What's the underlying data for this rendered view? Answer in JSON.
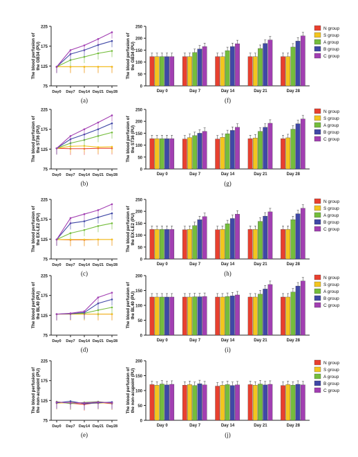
{
  "legend": {
    "labels": [
      "N group",
      "S group",
      "A group",
      "B group",
      "C group"
    ],
    "colors": [
      "#e8402f",
      "#f3c51f",
      "#74bd3c",
      "#3f48a6",
      "#a23fb2"
    ]
  },
  "line_x_labels": [
    "Day0",
    "Day7",
    "Day14",
    "Day21",
    "Day28"
  ],
  "bar_x_labels": [
    "Day 0",
    "Day 7",
    "Day 14",
    "Day 21",
    "Day 28"
  ],
  "chart_data": [
    {
      "id": "a",
      "type": "line",
      "panel_label": "(a)",
      "ylabel": "The blood perfusion of the GB34 (PU)",
      "yticks": [
        75,
        125,
        175,
        225
      ],
      "ylim": [
        75,
        225
      ],
      "categories": [
        "Day0",
        "Day7",
        "Day14",
        "Day21",
        "Day28"
      ],
      "series": [
        {
          "name": "N group",
          "values": [
            123,
            123,
            123,
            123,
            123
          ]
        },
        {
          "name": "S group",
          "values": [
            123,
            123,
            123,
            123,
            123
          ]
        },
        {
          "name": "A group",
          "values": [
            123,
            140,
            148,
            157,
            163
          ]
        },
        {
          "name": "B group",
          "values": [
            123,
            155,
            165,
            178,
            188
          ]
        },
        {
          "name": "C group",
          "values": [
            123,
            165,
            177,
            193,
            210
          ]
        }
      ]
    },
    {
      "id": "b",
      "type": "line",
      "panel_label": "(b)",
      "ylabel": "The blood perfusion of the ST36 (PU)",
      "yticks": [
        75,
        125,
        175,
        225
      ],
      "ylim": [
        75,
        225
      ],
      "categories": [
        "Day0",
        "Day7",
        "Day14",
        "Day21",
        "Day28"
      ],
      "series": [
        {
          "name": "N group",
          "values": [
            127,
            126,
            126,
            127,
            127
          ]
        },
        {
          "name": "S group",
          "values": [
            127,
            132,
            133,
            130,
            131
          ]
        },
        {
          "name": "A group",
          "values": [
            127,
            140,
            148,
            158,
            167
          ]
        },
        {
          "name": "B group",
          "values": [
            127,
            150,
            162,
            175,
            190
          ]
        },
        {
          "name": "C group",
          "values": [
            127,
            158,
            175,
            192,
            210
          ]
        }
      ]
    },
    {
      "id": "c",
      "type": "line",
      "panel_label": "(c)",
      "ylabel": "The blood perfusion of the EX-LE2 (PU)",
      "yticks": [
        75,
        125,
        175,
        225
      ],
      "ylim": [
        75,
        225
      ],
      "categories": [
        "Day0",
        "Day7",
        "Day14",
        "Day21",
        "Day28"
      ],
      "series": [
        {
          "name": "N group",
          "values": [
            124,
            123,
            123,
            124,
            124
          ]
        },
        {
          "name": "S group",
          "values": [
            124,
            124,
            124,
            124,
            124
          ]
        },
        {
          "name": "A group",
          "values": [
            124,
            140,
            148,
            158,
            165
          ]
        },
        {
          "name": "B group",
          "values": [
            124,
            165,
            170,
            180,
            190
          ]
        },
        {
          "name": "C group",
          "values": [
            124,
            178,
            188,
            198,
            213
          ]
        }
      ]
    },
    {
      "id": "d",
      "type": "line",
      "panel_label": "(d)",
      "ylabel": "The blood perfusion of the BL40 (PU)",
      "yticks": [
        75,
        125,
        175,
        225
      ],
      "ylim": [
        75,
        225
      ],
      "categories": [
        "Day0",
        "Day7",
        "Day14",
        "Day21",
        "Day28"
      ],
      "series": [
        {
          "name": "N group",
          "values": [
            128,
            128,
            128,
            128,
            128
          ]
        },
        {
          "name": "S group",
          "values": [
            128,
            128,
            128,
            128,
            128
          ]
        },
        {
          "name": "A group",
          "values": [
            128,
            129,
            130,
            138,
            145
          ]
        },
        {
          "name": "B group",
          "values": [
            128,
            129,
            132,
            155,
            165
          ]
        },
        {
          "name": "C group",
          "values": [
            128,
            130,
            135,
            170,
            182
          ]
        }
      ]
    },
    {
      "id": "e",
      "type": "line",
      "panel_label": "(e)",
      "ylabel": "The blood perfusion of the non-acupoint (PU)",
      "yticks": [
        75,
        125,
        175,
        225
      ],
      "ylim": [
        75,
        225
      ],
      "categories": [
        "Day0",
        "Day7",
        "Day14",
        "Day21",
        "Day28"
      ],
      "series": [
        {
          "name": "N group",
          "values": [
            120,
            118,
            115,
            120,
            117
          ]
        },
        {
          "name": "S group",
          "values": [
            118,
            120,
            118,
            118,
            120
          ]
        },
        {
          "name": "A group",
          "values": [
            122,
            117,
            120,
            122,
            118
          ]
        },
        {
          "name": "B group",
          "values": [
            119,
            123,
            117,
            119,
            121
          ]
        },
        {
          "name": "C group",
          "values": [
            121,
            119,
            119,
            121,
            119
          ]
        }
      ]
    },
    {
      "id": "f",
      "type": "bar",
      "panel_label": "(f)",
      "ylabel": "The blood perfusion of the GB34 (PU)",
      "yticks": [
        0,
        50,
        100,
        150,
        200,
        250
      ],
      "ylim": [
        0,
        250
      ],
      "categories": [
        "Day 0",
        "Day 7",
        "Day 14",
        "Day 21",
        "Day 28"
      ],
      "series": [
        {
          "name": "N group",
          "values": [
            123,
            123,
            123,
            123,
            123
          ]
        },
        {
          "name": "S group",
          "values": [
            123,
            123,
            123,
            123,
            123
          ]
        },
        {
          "name": "A group",
          "values": [
            123,
            140,
            148,
            157,
            163
          ]
        },
        {
          "name": "B group",
          "values": [
            123,
            155,
            165,
            178,
            188
          ]
        },
        {
          "name": "C group",
          "values": [
            123,
            165,
            177,
            193,
            210
          ]
        }
      ]
    },
    {
      "id": "g",
      "type": "bar",
      "panel_label": "(g)",
      "ylabel": "The blood perfusion of the ST36 (PU)",
      "yticks": [
        0,
        50,
        100,
        150,
        200,
        250
      ],
      "ylim": [
        0,
        250
      ],
      "categories": [
        "Day 0",
        "Day 7",
        "Day 14",
        "Day 21",
        "Day 28"
      ],
      "series": [
        {
          "name": "N group",
          "values": [
            127,
            126,
            126,
            127,
            127
          ]
        },
        {
          "name": "S group",
          "values": [
            127,
            132,
            133,
            130,
            131
          ]
        },
        {
          "name": "A group",
          "values": [
            127,
            140,
            148,
            158,
            167
          ]
        },
        {
          "name": "B group",
          "values": [
            127,
            150,
            162,
            175,
            190
          ]
        },
        {
          "name": "C group",
          "values": [
            127,
            158,
            175,
            192,
            210
          ]
        }
      ]
    },
    {
      "id": "h",
      "type": "bar",
      "panel_label": "(h)",
      "ylabel": "The blood perfusion of the EX-LE2 (PU)",
      "yticks": [
        0,
        50,
        100,
        150,
        200,
        250
      ],
      "ylim": [
        0,
        250
      ],
      "categories": [
        "Day 0",
        "Day 7",
        "Day 14",
        "Day 21",
        "Day 28"
      ],
      "series": [
        {
          "name": "N group",
          "values": [
            124,
            123,
            123,
            124,
            124
          ]
        },
        {
          "name": "S group",
          "values": [
            124,
            124,
            124,
            124,
            124
          ]
        },
        {
          "name": "A group",
          "values": [
            124,
            140,
            148,
            158,
            165
          ]
        },
        {
          "name": "B group",
          "values": [
            124,
            165,
            170,
            180,
            190
          ]
        },
        {
          "name": "C group",
          "values": [
            124,
            178,
            188,
            198,
            213
          ]
        }
      ]
    },
    {
      "id": "i",
      "type": "bar",
      "panel_label": "(i)",
      "ylabel": "The blood perfusion of the BL40 (PU)",
      "yticks": [
        0,
        50,
        100,
        150,
        200
      ],
      "ylim": [
        0,
        200
      ],
      "categories": [
        "Day 0",
        "Day 7",
        "Day 14",
        "Day 21",
        "Day 28"
      ],
      "series": [
        {
          "name": "N group",
          "values": [
            128,
            128,
            128,
            128,
            128
          ]
        },
        {
          "name": "S group",
          "values": [
            128,
            128,
            128,
            128,
            128
          ]
        },
        {
          "name": "A group",
          "values": [
            128,
            129,
            130,
            138,
            145
          ]
        },
        {
          "name": "B group",
          "values": [
            128,
            129,
            132,
            155,
            165
          ]
        },
        {
          "name": "C group",
          "values": [
            128,
            130,
            135,
            170,
            182
          ]
        }
      ]
    },
    {
      "id": "j",
      "type": "bar",
      "panel_label": "(j)",
      "ylabel": "The blood perfusion of the non-acupoint (PU)",
      "yticks": [
        0,
        50,
        100,
        150,
        200
      ],
      "ylim": [
        0,
        200
      ],
      "categories": [
        "Day 0",
        "Day 7",
        "Day 14",
        "Day 21",
        "Day 28"
      ],
      "series": [
        {
          "name": "N group",
          "values": [
            120,
            118,
            115,
            120,
            117
          ]
        },
        {
          "name": "S group",
          "values": [
            118,
            120,
            118,
            118,
            120
          ]
        },
        {
          "name": "A group",
          "values": [
            122,
            117,
            120,
            122,
            118
          ]
        },
        {
          "name": "B group",
          "values": [
            119,
            123,
            117,
            119,
            121
          ]
        },
        {
          "name": "C group",
          "values": [
            121,
            119,
            119,
            121,
            119
          ]
        }
      ]
    }
  ]
}
